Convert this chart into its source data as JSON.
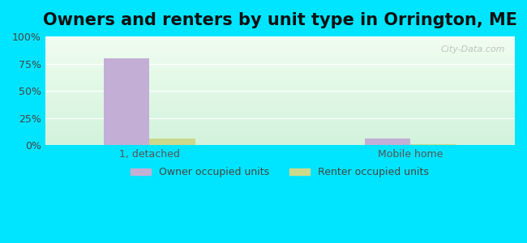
{
  "title": "Owners and renters by unit type in Orrington, ME",
  "categories": [
    "1, detached",
    "Mobile home"
  ],
  "owner_values": [
    80,
    6
  ],
  "renter_values": [
    6,
    1
  ],
  "owner_color": "#c3aed6",
  "renter_color": "#ccd98a",
  "ylim": [
    0,
    100
  ],
  "yticks": [
    0,
    25,
    50,
    75,
    100
  ],
  "ytick_labels": [
    "0%",
    "25%",
    "50%",
    "75%",
    "100%"
  ],
  "background_top": "#e8f5e9",
  "background_bottom": "#d0f0d0",
  "outer_bg": "#00e5ff",
  "bar_width": 0.35,
  "group_positions": [
    1,
    3
  ],
  "legend_labels": [
    "Owner occupied units",
    "Renter occupied units"
  ],
  "watermark": "City-Data.com",
  "title_fontsize": 15,
  "axis_label_fontsize": 9,
  "legend_fontsize": 9
}
